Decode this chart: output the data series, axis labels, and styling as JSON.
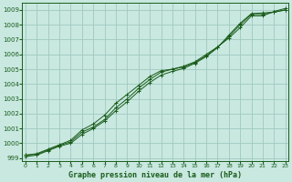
{
  "xlabel": "Graphe pression niveau de la mer (hPa)",
  "ylim": [
    998.8,
    1009.5
  ],
  "xlim": [
    -0.3,
    23.3
  ],
  "yticks": [
    999,
    1000,
    1001,
    1002,
    1003,
    1004,
    1005,
    1006,
    1007,
    1008,
    1009
  ],
  "xticks": [
    0,
    1,
    2,
    3,
    4,
    5,
    6,
    7,
    8,
    9,
    10,
    11,
    12,
    13,
    14,
    15,
    16,
    17,
    18,
    19,
    20,
    21,
    22,
    23
  ],
  "bg_color": "#c8e8e0",
  "grid_color": "#a0c8c0",
  "line_color": "#1a5c1a",
  "series": [
    [
      999.2,
      999.3,
      999.6,
      999.9,
      1000.2,
      1000.9,
      1001.3,
      1001.9,
      1002.7,
      1003.3,
      1003.9,
      1004.5,
      1004.9,
      1005.0,
      1005.2,
      1005.5,
      1006.0,
      1006.5,
      1007.1,
      1007.8,
      1008.6,
      1008.6,
      1008.9,
      1009.1
    ],
    [
      999.2,
      999.25,
      999.55,
      999.85,
      1000.1,
      1000.75,
      1001.1,
      1001.6,
      1002.4,
      1003.0,
      1003.7,
      1004.3,
      1004.8,
      1005.0,
      1005.15,
      1005.45,
      1005.9,
      1006.5,
      1007.2,
      1008.0,
      1008.7,
      1008.7,
      1008.85,
      1009.0
    ],
    [
      999.1,
      999.2,
      999.5,
      999.8,
      1000.0,
      1000.6,
      1001.0,
      1001.5,
      1002.2,
      1002.8,
      1003.5,
      1004.1,
      1004.6,
      1004.85,
      1005.05,
      1005.4,
      1005.85,
      1006.45,
      1007.3,
      1008.1,
      1008.75,
      1008.8,
      1008.85,
      1009.0
    ]
  ]
}
